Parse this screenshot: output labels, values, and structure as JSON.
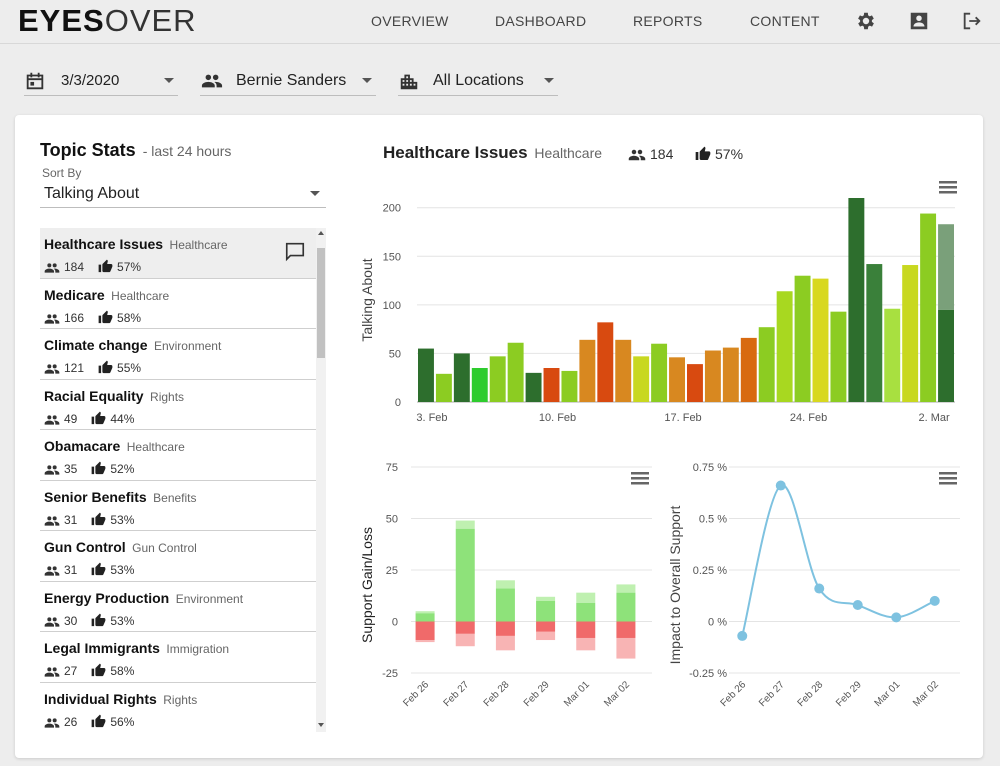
{
  "header": {
    "logo_bold": "EYES",
    "logo_light": "OVER",
    "nav": [
      "OVERVIEW",
      "DASHBOARD",
      "REPORTS",
      "CONTENT"
    ]
  },
  "filters": {
    "date": "3/3/2020",
    "person": "Bernie Sanders",
    "location": "All Locations"
  },
  "topic_stats": {
    "title": "Topic Stats",
    "subtitle": "- last 24 hours",
    "sort_label": "Sort By",
    "sort_value": "Talking About",
    "items": [
      {
        "name": "Healthcare Issues",
        "category": "Healthcare",
        "count": "184",
        "pct": "57%"
      },
      {
        "name": "Medicare",
        "category": "Healthcare",
        "count": "166",
        "pct": "58%"
      },
      {
        "name": "Climate change",
        "category": "Environment",
        "count": "121",
        "pct": "55%"
      },
      {
        "name": "Racial Equality",
        "category": "Rights",
        "count": "49",
        "pct": "44%"
      },
      {
        "name": "Obamacare",
        "category": "Healthcare",
        "count": "35",
        "pct": "52%"
      },
      {
        "name": "Senior Benefits",
        "category": "Benefits",
        "count": "31",
        "pct": "53%"
      },
      {
        "name": "Gun Control",
        "category": "Gun Control",
        "count": "31",
        "pct": "53%"
      },
      {
        "name": "Energy Production",
        "category": "Environment",
        "count": "30",
        "pct": "53%"
      },
      {
        "name": "Legal Immigrants",
        "category": "Immigration",
        "count": "27",
        "pct": "58%"
      },
      {
        "name": "Individual Rights",
        "category": "Rights",
        "count": "26",
        "pct": "56%"
      }
    ]
  },
  "detail": {
    "title": "Healthcare Issues",
    "category": "Healthcare",
    "count": "184",
    "pct": "57%"
  },
  "chart_data": [
    {
      "type": "bar",
      "ylabel": "Talking About",
      "ylim": [
        0,
        210
      ],
      "yticks": [
        0,
        50,
        100,
        150,
        200
      ],
      "xtick_labels": [
        {
          "label": "3. Feb",
          "index": 0
        },
        {
          "label": "10. Feb",
          "index": 7
        },
        {
          "label": "17. Feb",
          "index": 14
        },
        {
          "label": "24. Feb",
          "index": 21
        },
        {
          "label": "2. Mar",
          "index": 28
        }
      ],
      "values": [
        55,
        29,
        50,
        35,
        47,
        61,
        30,
        35,
        32,
        64,
        82,
        64,
        47,
        60,
        46,
        39,
        53,
        56,
        66,
        77,
        114,
        130,
        127,
        93,
        210,
        142,
        96,
        141,
        194,
        95
      ],
      "extra_last": 88,
      "colors": [
        "#2d6e2d",
        "#8ccc22",
        "#2d6e2d",
        "#2ecc2e",
        "#8ccc22",
        "#8ccc22",
        "#2d6e2d",
        "#d84a10",
        "#8ccc22",
        "#d88820",
        "#d84a10",
        "#d88820",
        "#c8d820",
        "#8ccc22",
        "#d88820",
        "#d84a10",
        "#d88820",
        "#d88820",
        "#d86a10",
        "#8ccc22",
        "#a8d820",
        "#8ccc22",
        "#d8d820",
        "#8ccc22",
        "#2d6e2d",
        "#3a803a",
        "#a8e040",
        "#c8d820",
        "#8ccc22",
        "#2d6e2d"
      ],
      "extra_color": "#7aa07a"
    },
    {
      "type": "bar",
      "ylabel": "Support Gain/Loss",
      "ylim": [
        -25,
        75
      ],
      "yticks": [
        75,
        50,
        25,
        0,
        -25
      ],
      "categories": [
        "Feb 26",
        "Feb 27",
        "Feb 28",
        "Feb 29",
        "Mar 01",
        "Mar 02"
      ],
      "pos_main": [
        4,
        45,
        16,
        10,
        9,
        14
      ],
      "pos_light": [
        5,
        49,
        20,
        12,
        14,
        18
      ],
      "neg_main": [
        -9,
        -6,
        -7,
        -5,
        -8,
        -8
      ],
      "neg_light": [
        -10,
        -12,
        -14,
        -9,
        -14,
        -18
      ]
    },
    {
      "type": "line",
      "ylabel": "Impact to Overall Support",
      "ylim": [
        -0.25,
        0.75
      ],
      "yticks": [
        "0.75 %",
        "0.5 %",
        "0.25 %",
        "0 %",
        "-0.25 %"
      ],
      "ytick_values": [
        0.75,
        0.5,
        0.25,
        0,
        -0.25
      ],
      "categories": [
        "Feb 26",
        "Feb 27",
        "Feb 28",
        "Feb 29",
        "Mar 01",
        "Mar 02"
      ],
      "values": [
        -0.07,
        0.66,
        0.16,
        0.08,
        0.02,
        0.1
      ],
      "color": "#7ec2e0"
    }
  ]
}
